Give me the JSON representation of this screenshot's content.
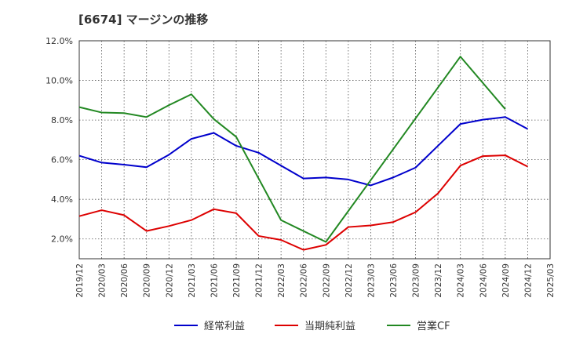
{
  "chart_data": {
    "type": "line",
    "title": "[6674]  マージンの推移",
    "x": [
      "2019/12",
      "2020/03",
      "2020/06",
      "2020/09",
      "2020/12",
      "2021/03",
      "2021/06",
      "2021/09",
      "2021/12",
      "2022/03",
      "2022/06",
      "2022/09",
      "2022/12",
      "2023/03",
      "2023/06",
      "2023/09",
      "2023/12",
      "2024/03",
      "2024/06",
      "2024/09",
      "2024/12",
      "2025/03"
    ],
    "ylim": [
      1.0,
      12.0
    ],
    "yticks": [
      2.0,
      4.0,
      6.0,
      8.0,
      10.0,
      12.0
    ],
    "ytick_labels": [
      "2.0%",
      "4.0%",
      "6.0%",
      "8.0%",
      "10.0%",
      "12.0%"
    ],
    "grid": true,
    "legend_position": "bottom",
    "series": [
      {
        "name": "経常利益",
        "color": "#0000cc",
        "values": [
          6.2,
          5.85,
          5.75,
          5.62,
          6.25,
          7.05,
          7.35,
          6.7,
          6.35,
          5.7,
          5.05,
          5.1,
          5.0,
          4.7,
          5.1,
          5.6,
          6.7,
          7.8,
          8.02,
          8.15,
          7.55,
          null
        ]
      },
      {
        "name": "当期純利益",
        "color": "#dd0000",
        "values": [
          3.15,
          3.45,
          3.2,
          2.4,
          2.65,
          2.95,
          3.5,
          3.3,
          2.15,
          1.95,
          1.45,
          1.7,
          2.6,
          2.68,
          2.85,
          3.35,
          4.3,
          5.7,
          6.18,
          6.22,
          5.65,
          null
        ]
      },
      {
        "name": "営業CF",
        "color": "#228822",
        "values": [
          8.65,
          8.38,
          8.35,
          8.15,
          8.75,
          9.3,
          8.05,
          7.15,
          null,
          2.95,
          null,
          1.85,
          null,
          null,
          null,
          null,
          null,
          11.2,
          null,
          8.55,
          null,
          null
        ]
      }
    ]
  }
}
